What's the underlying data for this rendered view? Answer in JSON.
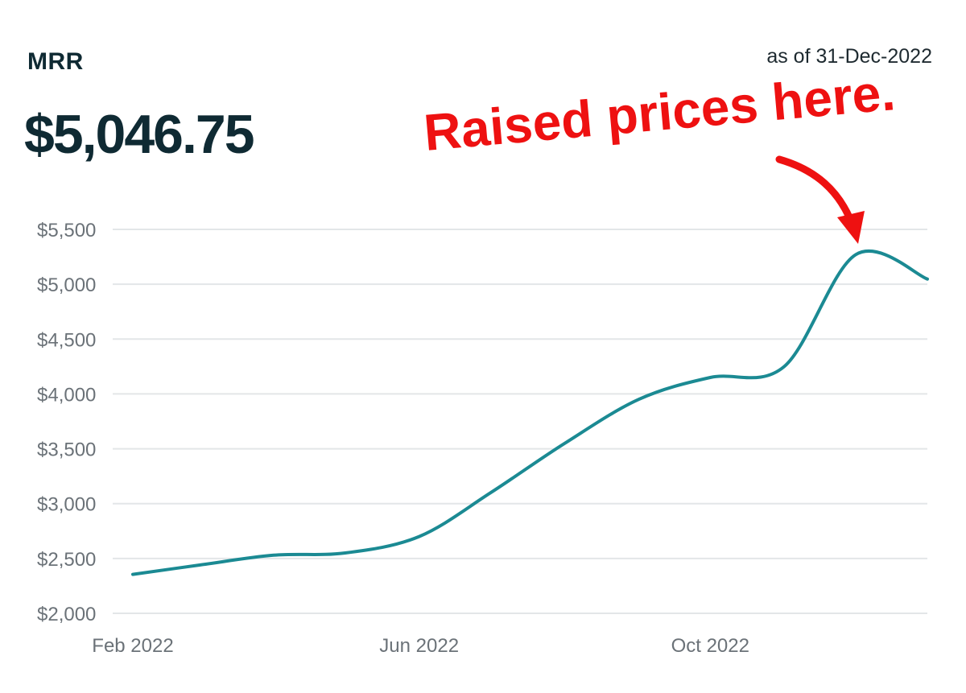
{
  "header": {
    "metric_label": "MRR",
    "as_of": "as of 31-Dec-2022",
    "metric_value": "$5,046.75"
  },
  "annotation": {
    "text": "Raised prices here.",
    "color": "#ee1111",
    "icon": "curved-arrow-icon"
  },
  "colors": {
    "line": "#1b8a93",
    "grid": "#e3e6e8",
    "tick_text": "#6b7278",
    "title_text": "#0f2a33"
  },
  "chart_data": {
    "type": "line",
    "title": "",
    "xlabel": "",
    "ylabel": "",
    "ylim": [
      2000,
      5500
    ],
    "yticks": [
      2000,
      2500,
      3000,
      3500,
      4000,
      4500,
      5000,
      5500
    ],
    "ytick_labels": [
      "$2,000",
      "$2,500",
      "$3,000",
      "$3,500",
      "$4,000",
      "$4,500",
      "$5,000",
      "$5,500"
    ],
    "xticks": [
      {
        "label": "Feb 2022",
        "x": "2022-02-01"
      },
      {
        "label": "Jun 2022",
        "x": "2022-06-01"
      },
      {
        "label": "Oct 2022",
        "x": "2022-10-01"
      }
    ],
    "grid": true,
    "series": [
      {
        "values": [
          {
            "x": "2022-02-01",
            "y": 2355
          },
          {
            "x": "2022-03-01",
            "y": 2440
          },
          {
            "x": "2022-04-01",
            "y": 2530
          },
          {
            "x": "2022-05-01",
            "y": 2550
          },
          {
            "x": "2022-06-01",
            "y": 2700
          },
          {
            "x": "2022-07-01",
            "y": 3100
          },
          {
            "x": "2022-08-01",
            "y": 3550
          },
          {
            "x": "2022-09-01",
            "y": 3950
          },
          {
            "x": "2022-10-01",
            "y": 4150
          },
          {
            "x": "2022-11-01",
            "y": 4250
          },
          {
            "x": "2022-12-01",
            "y": 5270
          },
          {
            "x": "2022-12-31",
            "y": 5047
          }
        ]
      }
    ]
  }
}
